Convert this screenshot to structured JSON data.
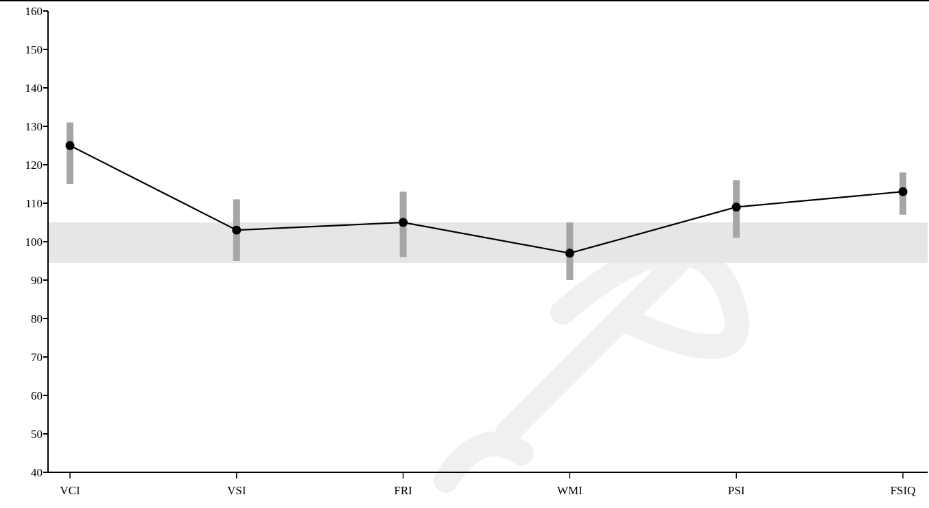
{
  "chart_data": {
    "type": "line",
    "title": "",
    "xlabel": "",
    "ylabel": "",
    "categories": [
      "VCI",
      "VSI",
      "FRI",
      "WMI",
      "PSI",
      "FSIQ"
    ],
    "series": [
      {
        "values": [
          125,
          103,
          105,
          97,
          109,
          113
        ],
        "ci_low": [
          115,
          95,
          96,
          90,
          101,
          107
        ],
        "ci_high": [
          131,
          111,
          113,
          105,
          116,
          118
        ]
      }
    ],
    "ylim": [
      40,
      160
    ],
    "yticks": [
      40,
      50,
      60,
      70,
      80,
      90,
      100,
      110,
      120,
      130,
      140,
      150,
      160
    ],
    "average_band": [
      94.5,
      105
    ],
    "grid": false,
    "colors": {
      "line": "#000000",
      "marker": "#000000",
      "ci_bar": "#a6a6a6",
      "band": "#e6e6e6",
      "watermark": "#f0f0f0"
    },
    "watermark_text": "Sample"
  }
}
